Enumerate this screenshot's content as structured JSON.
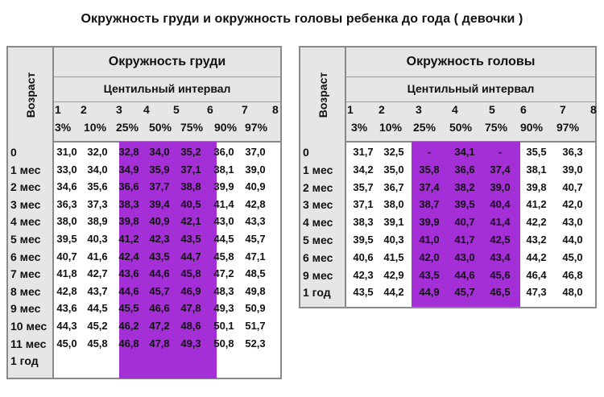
{
  "title": "Окружность груди и окружность головы ребенка до года (  девочки  )",
  "chest": {
    "side_label": "Возраст",
    "header": "Окружность груди",
    "subheader": "Центильный интервал",
    "interval_numbers": [
      "1",
      "2",
      "3",
      "4",
      "5",
      "6",
      "7",
      "8"
    ],
    "percentiles": [
      "3%",
      "10%",
      "25%",
      "50%",
      "75%",
      "90%",
      "97%"
    ],
    "rows": [
      {
        "age": "0",
        "values": [
          "31,0",
          "32,0",
          "32,8",
          "34,0",
          "35,2",
          "36,0",
          "37,0"
        ]
      },
      {
        "age": "1 мес",
        "values": [
          "33,0",
          "34,0",
          "34,9",
          "35,9",
          "37,1",
          "38,1",
          "39,0"
        ]
      },
      {
        "age": "2 мес",
        "values": [
          "34,6",
          "35,6",
          "36,6",
          "37,7",
          "38,8",
          "39,9",
          "40,9"
        ]
      },
      {
        "age": "3 мес",
        "values": [
          "36,3",
          "37,3",
          "38,3",
          "39,4",
          "40,5",
          "41,4",
          "42,8"
        ]
      },
      {
        "age": "4 мес",
        "values": [
          "38,0",
          "38,9",
          "39,8",
          "40,9",
          "42,1",
          "43,0",
          "43,3"
        ]
      },
      {
        "age": "5 мес",
        "values": [
          "39,5",
          "40,3",
          "41,2",
          "42,3",
          "43,5",
          "44,5",
          "45,7"
        ]
      },
      {
        "age": "6 мес",
        "values": [
          "40,7",
          "41,6",
          "42,4",
          "43,5",
          "44,7",
          "45,8",
          "47,1"
        ]
      },
      {
        "age": "7 мес",
        "values": [
          "41,8",
          "42,7",
          "43,6",
          "44,6",
          "45,8",
          "47,2",
          "48,5"
        ]
      },
      {
        "age": "8 мес",
        "values": [
          "42,8",
          "43,7",
          "44,6",
          "45,7",
          "46,9",
          "48,3",
          "49,8"
        ]
      },
      {
        "age": "9 мес",
        "values": [
          "43,6",
          "44,5",
          "45,5",
          "46,6",
          "47,8",
          "49,3",
          "50,9"
        ]
      },
      {
        "age": "10 мес",
        "values": [
          "44,3",
          "45,2",
          "46,2",
          "47,2",
          "48,6",
          "50,1",
          "51,7"
        ]
      },
      {
        "age": "11 мес",
        "values": [
          "45,0",
          "45,8",
          "46,8",
          "47,8",
          "49,3",
          "50,8",
          "52,3"
        ]
      }
    ],
    "extra_age_labels": [
      "1 год"
    ]
  },
  "head": {
    "side_label": "Возраст",
    "header": "Окружность головы",
    "subheader": "Центильный интервал",
    "interval_numbers": [
      "1",
      "2",
      "3",
      "4",
      "5",
      "6",
      "7",
      "8"
    ],
    "percentiles": [
      "3%",
      "10%",
      "25%",
      "50%",
      "75%",
      "90%",
      "97%"
    ],
    "rows": [
      {
        "age": "0",
        "values": [
          "31,7",
          "32,5",
          "-",
          "34,1",
          "-",
          "35,5",
          "36,3"
        ]
      },
      {
        "age": "1 мес",
        "values": [
          "34,2",
          "35,0",
          "35,8",
          "36,6",
          "37,4",
          "38,1",
          "39,0"
        ]
      },
      {
        "age": "2 мес",
        "values": [
          "35,7",
          "36,7",
          "37,4",
          "38,2",
          "39,0",
          "39,8",
          "40,7"
        ]
      },
      {
        "age": "3 мес",
        "values": [
          "37,1",
          "38,0",
          "38,7",
          "39,5",
          "40,4",
          "41,2",
          "42,0"
        ]
      },
      {
        "age": "4 мес",
        "values": [
          "38,3",
          "39,1",
          "39,9",
          "40,7",
          "41,4",
          "42,2",
          "43,0"
        ]
      },
      {
        "age": "5 мес",
        "values": [
          "39,5",
          "40,3",
          "41,0",
          "41,7",
          "42,5",
          "43,2",
          "44,0"
        ]
      },
      {
        "age": "6 мес",
        "values": [
          "40,6",
          "41,5",
          "42,0",
          "43,0",
          "43,4",
          "44,2",
          "45,0"
        ]
      },
      {
        "age": "9 мес",
        "values": [
          "42,3",
          "42,9",
          "43,5",
          "44,6",
          "45,6",
          "46,4",
          "46,8"
        ]
      },
      {
        "age": "1 год",
        "values": [
          "43,5",
          "44,2",
          "44,9",
          "45,7",
          "46,5",
          "47,3",
          "48,0"
        ]
      }
    ]
  },
  "colors": {
    "highlight": "#a52fd6",
    "header_bg": "#e6e6e6",
    "border": "#8a8a8a"
  }
}
